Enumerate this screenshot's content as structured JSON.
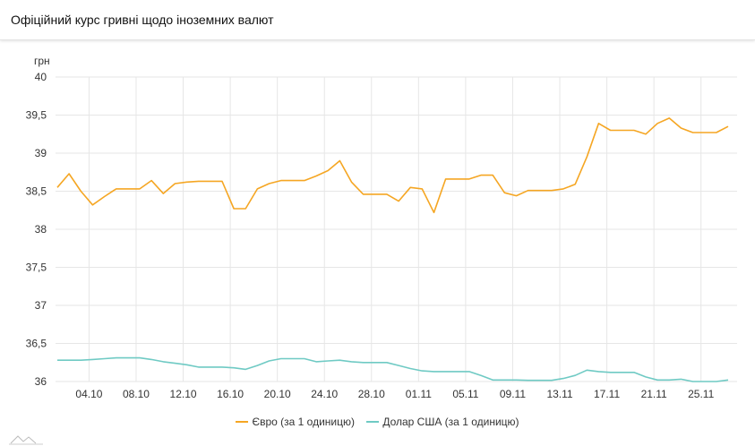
{
  "header": {
    "title": "Офіційний курс гривні щодо іноземних валют"
  },
  "chart_data": {
    "type": "line",
    "title": "",
    "ylabel": "грн",
    "ylim": [
      36,
      40
    ],
    "yticks": [
      "40",
      "39,5",
      "39",
      "38,5",
      "38",
      "37,5",
      "37",
      "36,5",
      "36"
    ],
    "ytick_values": [
      40,
      39.5,
      39,
      38.5,
      38,
      37.5,
      37,
      36.5,
      36
    ],
    "x_start": "01.10",
    "x_end": "27.11",
    "xticks": [
      "04.10",
      "08.10",
      "12.10",
      "16.10",
      "20.10",
      "24.10",
      "28.10",
      "01.11",
      "05.11",
      "09.11",
      "13.11",
      "17.11",
      "21.11",
      "25.11"
    ],
    "x": [
      "01.10",
      "02.10",
      "03.10",
      "04.10",
      "05.10",
      "06.10",
      "07.10",
      "08.10",
      "09.10",
      "10.10",
      "11.10",
      "12.10",
      "13.10",
      "14.10",
      "15.10",
      "16.10",
      "17.10",
      "18.10",
      "19.10",
      "20.10",
      "21.10",
      "22.10",
      "23.10",
      "24.10",
      "25.10",
      "26.10",
      "27.10",
      "28.10",
      "29.10",
      "30.10",
      "31.10",
      "01.11",
      "02.11",
      "03.11",
      "04.11",
      "05.11",
      "06.11",
      "07.11",
      "08.11",
      "09.11",
      "10.11",
      "11.11",
      "12.11",
      "13.11",
      "14.11",
      "15.11",
      "16.11",
      "17.11",
      "18.11",
      "19.11",
      "20.11",
      "21.11",
      "22.11",
      "23.11",
      "24.11",
      "25.11",
      "26.11",
      "27.11"
    ],
    "grid": true,
    "legend_position": "bottom",
    "series": [
      {
        "name": "Євро (за 1 одиницю)",
        "color": "#f5a623",
        "values": [
          38.55,
          38.73,
          38.5,
          38.32,
          38.43,
          38.53,
          38.53,
          38.53,
          38.64,
          38.47,
          38.6,
          38.62,
          38.63,
          38.63,
          38.63,
          38.27,
          38.27,
          38.53,
          38.6,
          38.64,
          38.64,
          38.64,
          38.7,
          38.77,
          38.9,
          38.62,
          38.46,
          38.46,
          38.46,
          38.37,
          38.55,
          38.53,
          38.22,
          38.66,
          38.66,
          38.66,
          38.71,
          38.71,
          38.48,
          38.44,
          38.51,
          38.51,
          38.51,
          38.53,
          38.59,
          38.95,
          39.39,
          39.3,
          39.3,
          39.3,
          39.25,
          39.39,
          39.46,
          39.33,
          39.27,
          39.27,
          39.27,
          39.35
        ]
      },
      {
        "name": "Долар США (за 1 одиницю)",
        "color": "#6fcac4",
        "values": [
          36.28,
          36.28,
          36.28,
          36.29,
          36.3,
          36.31,
          36.31,
          36.31,
          36.29,
          36.26,
          36.24,
          36.22,
          36.19,
          36.19,
          36.19,
          36.18,
          36.16,
          36.21,
          36.27,
          36.3,
          36.3,
          36.3,
          36.26,
          36.27,
          36.28,
          36.26,
          36.25,
          36.25,
          36.25,
          36.21,
          36.17,
          36.14,
          36.13,
          36.13,
          36.13,
          36.13,
          36.08,
          36.02,
          36.02,
          36.02,
          36.015,
          36.015,
          36.015,
          36.04,
          36.08,
          36.15,
          36.13,
          36.12,
          36.12,
          36.12,
          36.06,
          36.02,
          36.02,
          36.03,
          36.0,
          36.0,
          36.0,
          36.02
        ]
      }
    ]
  }
}
